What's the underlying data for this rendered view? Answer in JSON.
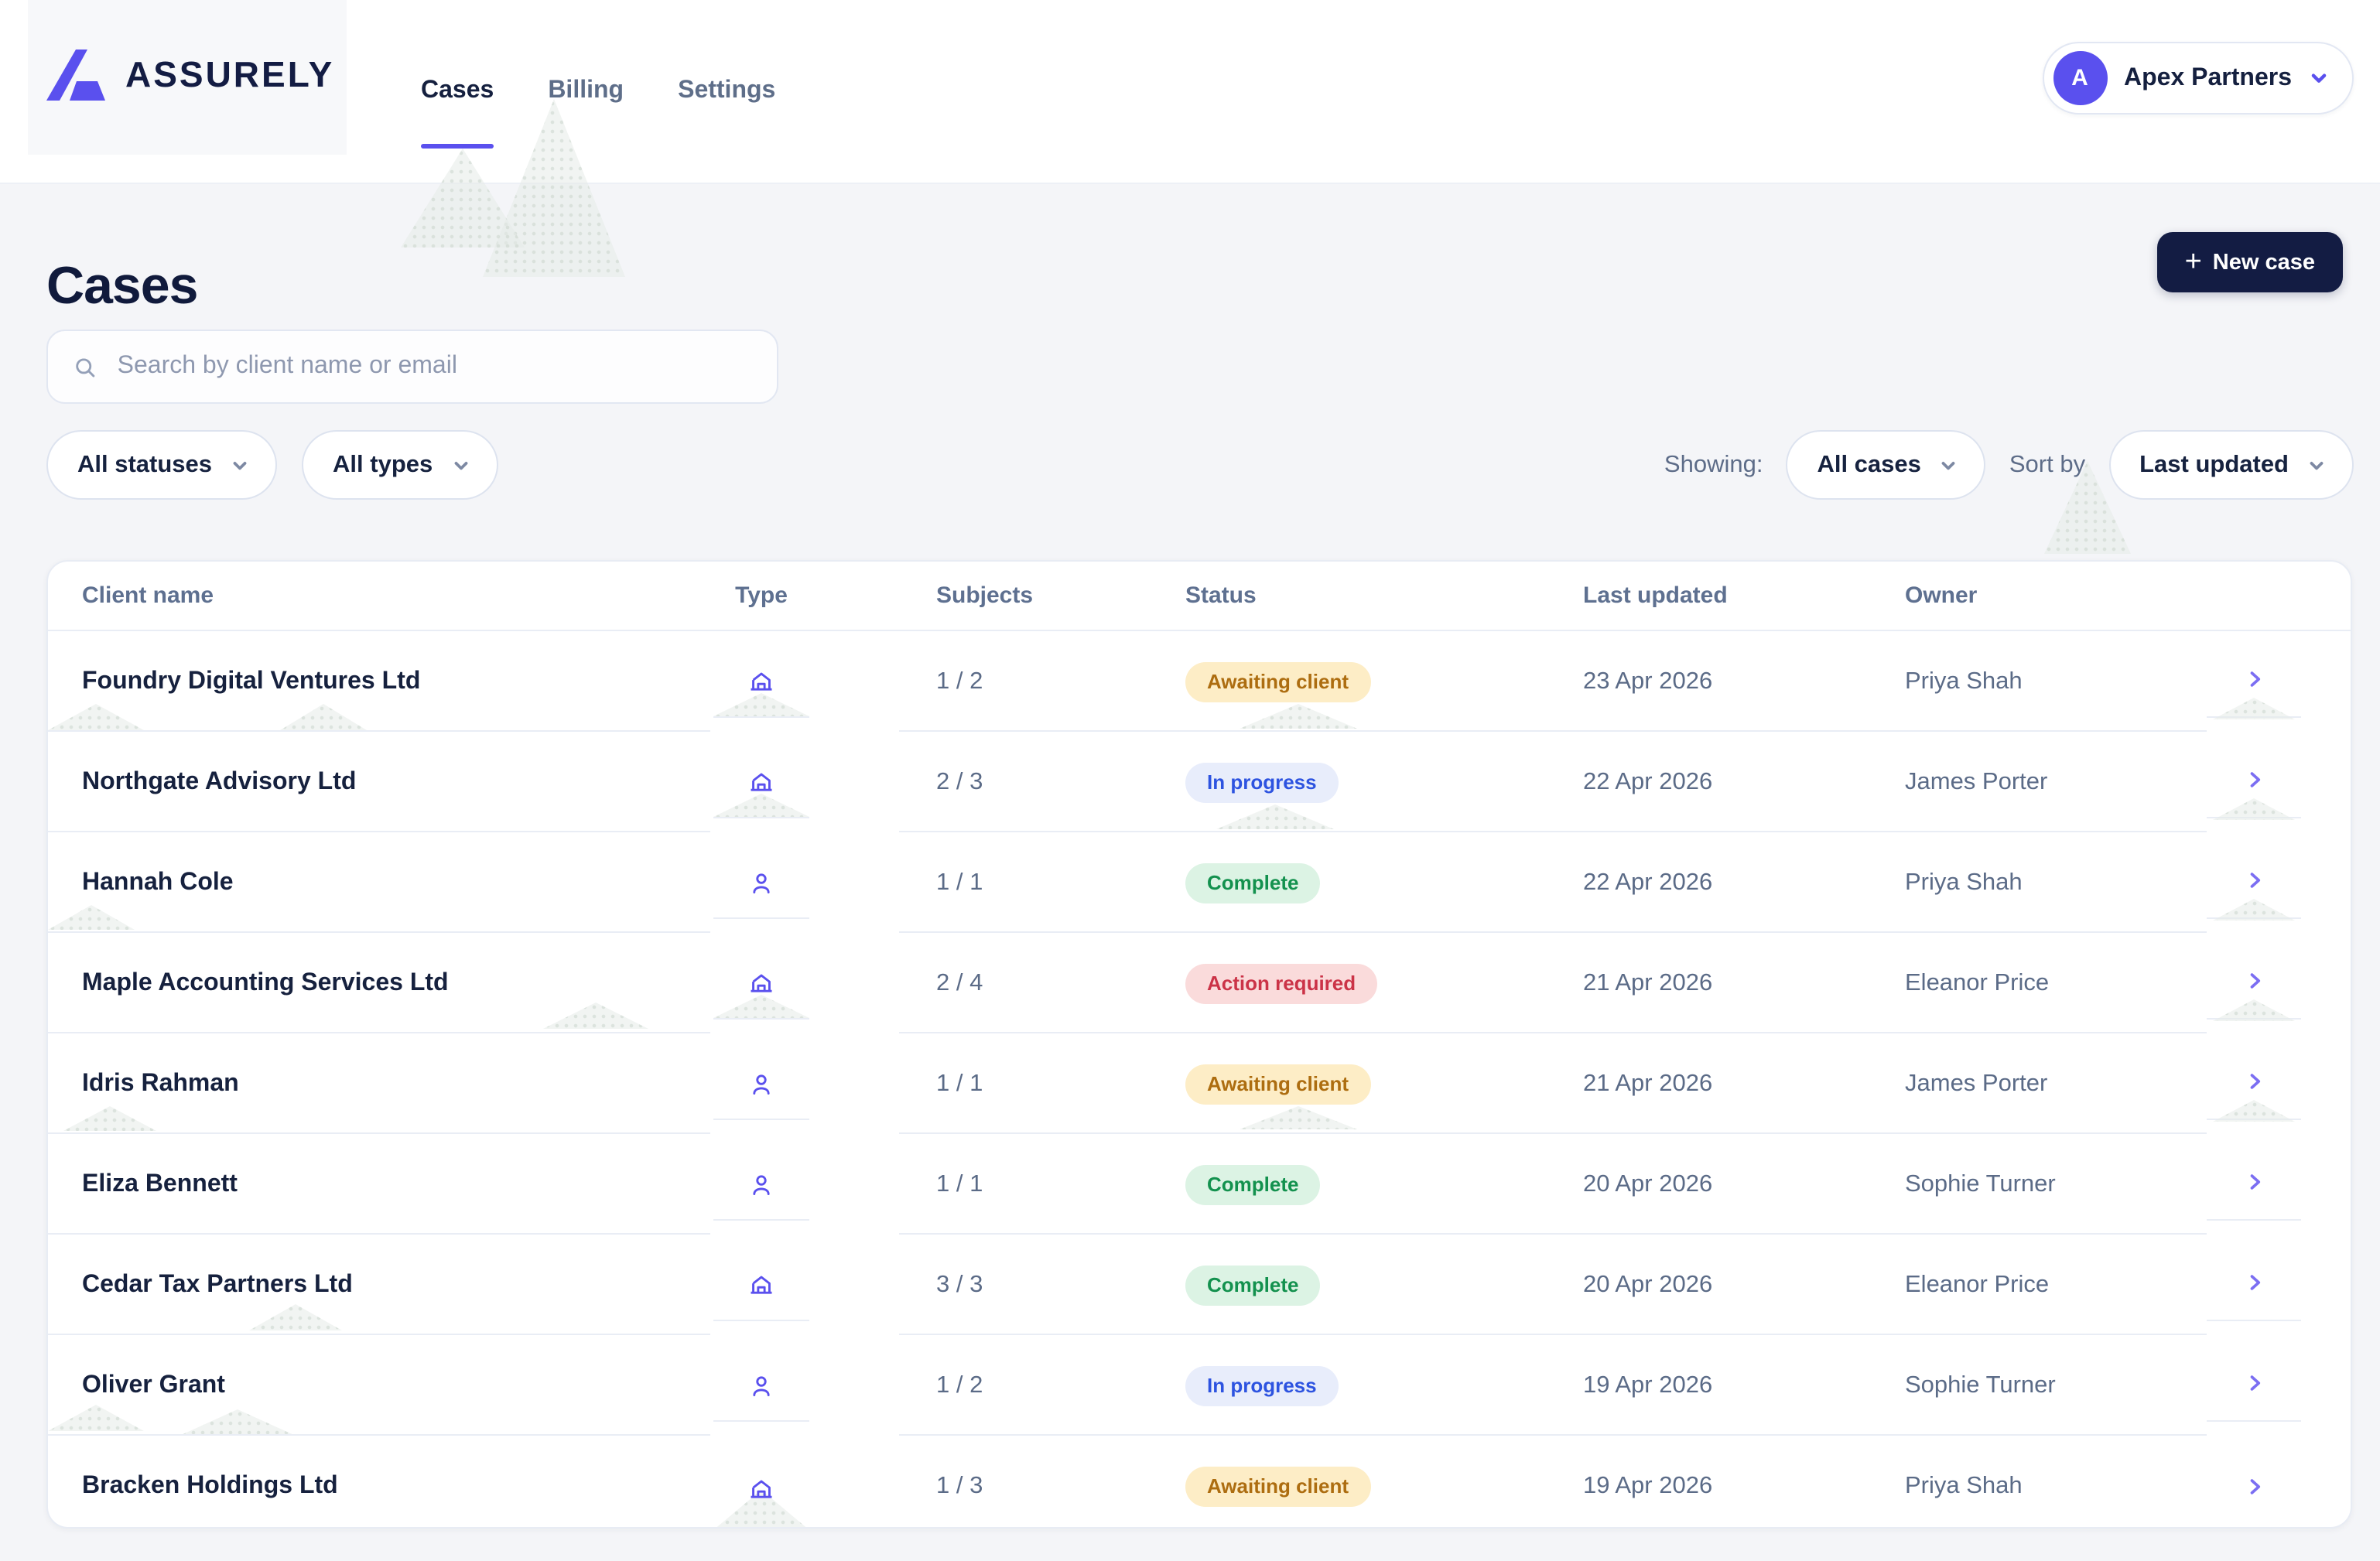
{
  "header": {
    "brand": "ASSURELY",
    "nav": [
      {
        "label": "Cases",
        "active": true
      },
      {
        "label": "Billing",
        "active": false
      },
      {
        "label": "Settings",
        "active": false
      }
    ],
    "account": {
      "initial": "A",
      "name": "Apex Partners"
    }
  },
  "page": {
    "title": "Cases",
    "new_case_label": "New case",
    "search_placeholder": "Search by client name or email",
    "filter_status": "All statuses",
    "filter_type": "All types",
    "showing_label": "Showing:",
    "showing_value": "All cases",
    "sort_label": "Sort by",
    "sort_value": "Last updated"
  },
  "table": {
    "columns": [
      "Client name",
      "Type",
      "Subjects",
      "Status",
      "Last updated",
      "Owner"
    ],
    "rows": [
      {
        "client": "Foundry Digital Ventures Ltd",
        "type_icon": "building-icon",
        "subjects": "1 / 2",
        "status": "Awaiting client",
        "status_key": "awaiting",
        "last_updated": "23 Apr 2026",
        "owner": "Priya Shah"
      },
      {
        "client": "Northgate Advisory Ltd",
        "type_icon": "building-icon",
        "subjects": "2 / 3",
        "status": "In progress",
        "status_key": "progress",
        "last_updated": "22 Apr 2026",
        "owner": "James Porter"
      },
      {
        "client": "Hannah Cole",
        "type_icon": "person-icon",
        "subjects": "1 / 1",
        "status": "Complete",
        "status_key": "complete",
        "last_updated": "22 Apr 2026",
        "owner": "Priya Shah"
      },
      {
        "client": "Maple Accounting Services Ltd",
        "type_icon": "building-icon",
        "subjects": "2 / 4",
        "status": "Action required",
        "status_key": "action",
        "last_updated": "21 Apr 2026",
        "owner": "Eleanor Price"
      },
      {
        "client": "Idris Rahman",
        "type_icon": "person-icon",
        "subjects": "1 / 1",
        "status": "Awaiting client",
        "status_key": "awaiting",
        "last_updated": "21 Apr 2026",
        "owner": "James Porter"
      },
      {
        "client": "Eliza Bennett",
        "type_icon": "person-icon",
        "subjects": "1 / 1",
        "status": "Complete",
        "status_key": "complete",
        "last_updated": "20 Apr 2026",
        "owner": "Sophie Turner"
      },
      {
        "client": "Cedar Tax Partners Ltd",
        "type_icon": "building-icon",
        "subjects": "3 / 3",
        "status": "Complete",
        "status_key": "complete",
        "last_updated": "20 Apr 2026",
        "owner": "Eleanor Price"
      },
      {
        "client": "Oliver Grant",
        "type_icon": "person-icon",
        "subjects": "1 / 2",
        "status": "In progress",
        "status_key": "progress",
        "last_updated": "19 Apr 2026",
        "owner": "Sophie Turner"
      },
      {
        "client": "Bracken Holdings Ltd",
        "type_icon": "building-icon",
        "subjects": "1 / 3",
        "status": "Awaiting client",
        "status_key": "awaiting",
        "last_updated": "19 Apr 2026",
        "owner": "Priya Shah"
      }
    ]
  },
  "colors": {
    "accent": "#5a50ee",
    "navy": "#131c43",
    "badge_awaiting_bg": "#fdedc6",
    "badge_awaiting_text": "#ad6d10",
    "badge_in_progress_bg": "#e8edfb",
    "badge_in_progress_text": "#2d53e0",
    "badge_complete_bg": "#dcf3e4",
    "badge_complete_text": "#13914e",
    "badge_action_bg": "#fadbdb",
    "badge_action_text": "#cb3347"
  }
}
